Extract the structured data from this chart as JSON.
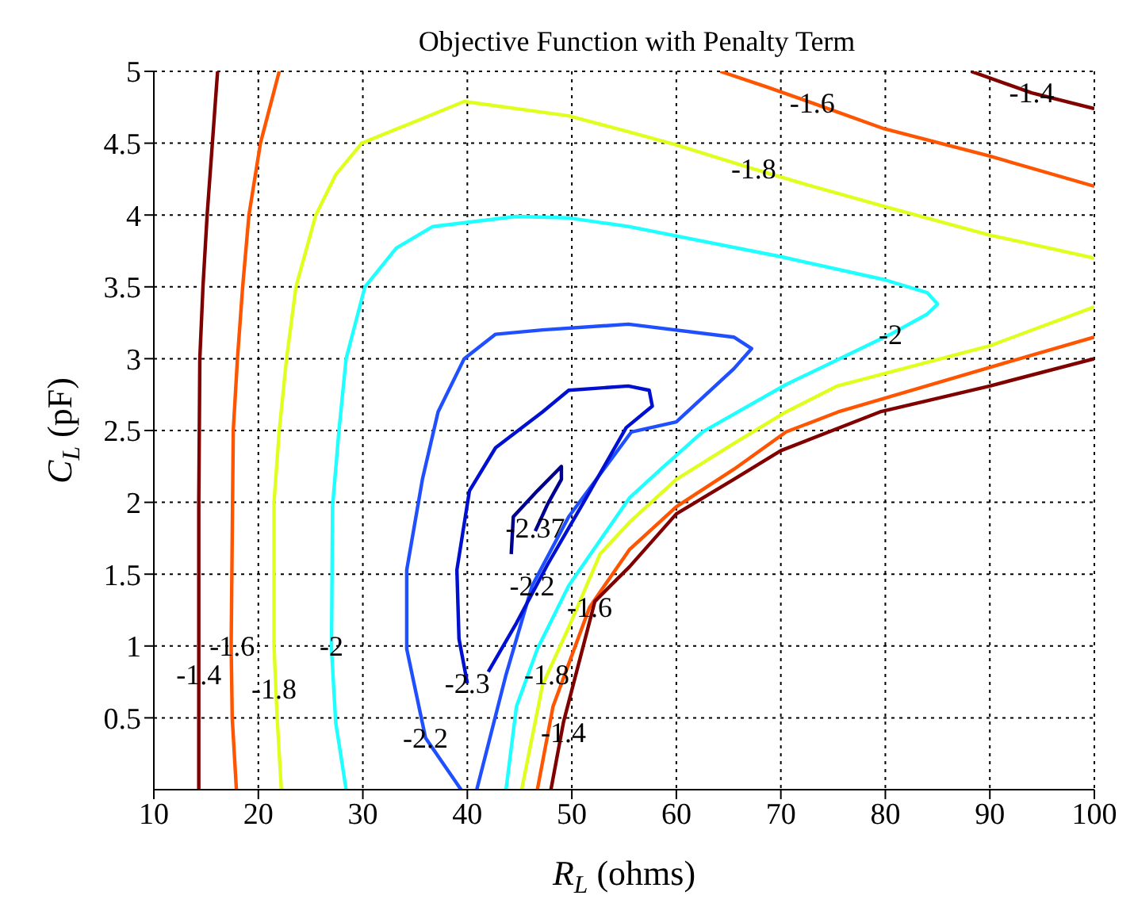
{
  "chart_data": {
    "type": "line",
    "title": "Objective Function with Penalty Term",
    "xlabel": "R$_{L}$ (ohms)",
    "ylabel": "C$_{L}$ (pF)",
    "xlim": [
      10,
      100
    ],
    "xticks": [
      10,
      20,
      30,
      40,
      50,
      60,
      70,
      80,
      90,
      100
    ],
    "ylim": [
      0,
      5
    ],
    "yticks": [
      0.5,
      1,
      1.5,
      2,
      2.5,
      3,
      3.5,
      4,
      4.5,
      5
    ],
    "grid": true,
    "marker": "none",
    "line_style": "solid",
    "series": [
      {
        "color": "#800000",
        "x": [
          16.1,
          15.6,
          15.1,
          14.7,
          14.4,
          14.3,
          14.3,
          14.3
        ],
        "values": [
          5,
          4.5,
          4,
          3.5,
          3,
          2,
          1,
          0
        ]
      },
      {
        "color": "#ff5500",
        "x": [
          22,
          20.2,
          19.1,
          18.5,
          18,
          17.6,
          17.4,
          17.5,
          17.9
        ],
        "values": [
          5,
          4.5,
          4,
          3.5,
          3,
          2.5,
          1,
          0.5,
          0
        ]
      },
      {
        "color": "#e0ff1f",
        "x": [
          22.2,
          21.8,
          21.5,
          21.5,
          22,
          22.7,
          23.6,
          25.5,
          27.4,
          29.9,
          39.7,
          49.7,
          55.4,
          59.9,
          67.4,
          73,
          79.9,
          90,
          100
        ],
        "values": [
          0,
          0.5,
          1,
          2,
          2.5,
          3,
          3.5,
          4,
          4.28,
          4.5,
          4.79,
          4.69,
          4.58,
          4.49,
          4.32,
          4.2,
          4.06,
          3.86,
          3.7
        ]
      },
      {
        "color": "#1fffff",
        "x": [
          28.4,
          27.4,
          27,
          27.1,
          27.7,
          28.4,
          30.2,
          33.2,
          36.7,
          44.7,
          49.7,
          55.4,
          70,
          79.9,
          84,
          85,
          84,
          80.5,
          70.5,
          62.5,
          58.5,
          55.5,
          49.7,
          46.7,
          44.7,
          43.7
        ],
        "values": [
          0,
          0.47,
          0.98,
          1.97,
          2.49,
          3,
          3.5,
          3.77,
          3.92,
          3.99,
          3.98,
          3.92,
          3.71,
          3.55,
          3.46,
          3.38,
          3.31,
          3.17,
          2.82,
          2.49,
          2.23,
          2.03,
          1.42,
          0.98,
          0.58,
          0
        ]
      },
      {
        "color": "#1f4fff",
        "x": [
          39.4,
          36,
          34.2,
          34.2,
          35.7,
          37.2,
          39.7,
          42.7,
          47.2,
          55.4,
          65.5,
          67.2,
          65.5,
          60,
          55.7,
          49.7,
          46.2,
          43.7,
          40.9
        ],
        "values": [
          0,
          0.36,
          0.98,
          1.53,
          2.16,
          2.63,
          3,
          3.17,
          3.2,
          3.24,
          3.15,
          3.07,
          2.93,
          2.56,
          2.49,
          1.9,
          1.42,
          0.8,
          0
        ]
      },
      {
        "color": "#0010d0",
        "x": [
          40,
          39.2,
          39,
          40.2,
          42.7,
          47.2,
          49.7,
          55.4,
          57.4,
          57.7,
          55.2,
          51.2,
          47.7,
          44.7,
          42
        ],
        "values": [
          0.74,
          1.05,
          1.53,
          2.08,
          2.38,
          2.63,
          2.78,
          2.81,
          2.78,
          2.67,
          2.52,
          2.01,
          1.57,
          1.16,
          0.82
        ]
      },
      {
        "color": "#000090",
        "x": [
          44.2,
          44.4,
          46.7,
          49,
          49,
          47.7,
          46.5
        ],
        "values": [
          1.64,
          1.9,
          2.08,
          2.25,
          2.16,
          1.99,
          1.8
        ]
      },
      {
        "color": "#e0ff1f",
        "x": [
          45.2,
          47.2,
          49.7,
          52.7,
          55.5,
          60,
          65.5,
          70.5,
          75.4,
          90,
          100
        ],
        "values": [
          0,
          0.73,
          1.13,
          1.64,
          1.86,
          2.16,
          2.41,
          2.63,
          2.81,
          3.09,
          3.36
        ]
      },
      {
        "color": "#ff5500",
        "x": [
          46.7,
          48.2,
          51.7,
          55.5,
          60,
          65.5,
          70.5,
          75.5,
          90,
          100
        ],
        "values": [
          0,
          0.58,
          1.27,
          1.67,
          1.97,
          2.23,
          2.49,
          2.63,
          2.94,
          3.15
        ]
      },
      {
        "color": "#800000",
        "x": [
          48,
          49.2,
          52.2,
          55.5,
          60,
          65.5,
          70,
          79.5,
          90,
          100
        ],
        "values": [
          0,
          0.47,
          1.31,
          1.55,
          1.92,
          2.16,
          2.36,
          2.63,
          2.81,
          3
        ]
      },
      {
        "color": "#ff5500",
        "x": [
          64.2,
          68.7,
          73,
          79.9,
          90,
          100
        ],
        "values": [
          5,
          4.89,
          4.78,
          4.6,
          4.41,
          4.2
        ]
      },
      {
        "color": "#800000",
        "x": [
          88.2,
          94,
          100
        ],
        "values": [
          5,
          4.85,
          4.74
        ]
      }
    ],
    "annotations": [
      {
        "text": "-1.4",
        "x": 14.3,
        "y": 0.8
      },
      {
        "text": "-1.6",
        "x": 17.5,
        "y": 1.0
      },
      {
        "text": "-1.8",
        "x": 21.5,
        "y": 0.7
      },
      {
        "text": "-2",
        "x": 27,
        "y": 1.0
      },
      {
        "text": "-2.2",
        "x": 36,
        "y": 0.36
      },
      {
        "text": "-2.3",
        "x": 40,
        "y": 0.74
      },
      {
        "text": "-2.2",
        "x": 46.2,
        "y": 1.42
      },
      {
        "text": "-2.37",
        "x": 46.5,
        "y": 1.82
      },
      {
        "text": "-1.8",
        "x": 47.6,
        "y": 0.8
      },
      {
        "text": "-1.6",
        "x": 51.7,
        "y": 1.27
      },
      {
        "text": "-1.4",
        "x": 49.2,
        "y": 0.4
      },
      {
        "text": "-1.6",
        "x": 73,
        "y": 4.78
      },
      {
        "text": "-1.8",
        "x": 67.4,
        "y": 4.32
      },
      {
        "text": "-1.4",
        "x": 94,
        "y": 4.85
      },
      {
        "text": "-2",
        "x": 80.5,
        "y": 3.17
      }
    ]
  }
}
